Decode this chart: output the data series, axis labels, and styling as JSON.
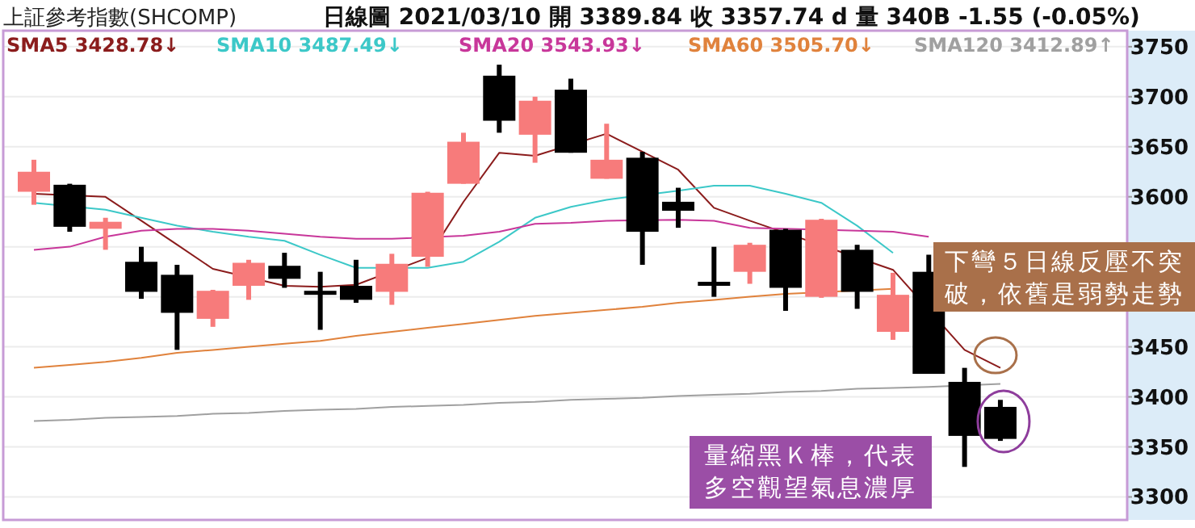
{
  "chart_data": {
    "type": "candlestick",
    "title": "上証參考指數(SHCOMP)",
    "subtitle": "日線圖  2021/03/10  開 3389.84  收 3357.74 d  量 340B  -1.55 (-0.05%)",
    "categories": [
      null,
      null,
      null,
      null,
      null,
      null,
      null,
      null,
      null,
      null,
      null,
      null,
      null,
      null,
      null,
      null,
      null,
      null,
      null,
      null,
      null,
      null,
      null,
      null,
      null,
      null,
      null,
      null
    ],
    "ohlc": [
      [
        3605,
        3637,
        3592,
        3625
      ],
      [
        3612,
        3613,
        3565,
        3570
      ],
      [
        3568,
        3579,
        3547,
        3575
      ],
      [
        3535,
        3550,
        3498,
        3505
      ],
      [
        3522,
        3532,
        3447,
        3484
      ],
      [
        3478,
        3507,
        3470,
        3506
      ],
      [
        3511,
        3537,
        3497,
        3534
      ],
      [
        3531,
        3544,
        3509,
        3518
      ],
      [
        3506,
        3525,
        3467,
        3502
      ],
      [
        3511,
        3537,
        3494,
        3497
      ],
      [
        3505,
        3543,
        3492,
        3533
      ],
      [
        3540,
        3605,
        3530,
        3604
      ],
      [
        3613,
        3664,
        3613,
        3655
      ],
      [
        3721,
        3732,
        3664,
        3676
      ],
      [
        3662,
        3700,
        3634,
        3696
      ],
      [
        3707,
        3718,
        3644,
        3644
      ],
      [
        3618,
        3673,
        3618,
        3637
      ],
      [
        3639,
        3645,
        3532,
        3565
      ],
      [
        3595,
        3609,
        3569,
        3586
      ],
      [
        3515,
        3550,
        3500,
        3511
      ],
      [
        3525,
        3554,
        3513,
        3552
      ],
      [
        3567,
        3568,
        3486,
        3509
      ],
      [
        3500,
        3578,
        3499,
        3577
      ],
      [
        3547,
        3552,
        3488,
        3505
      ],
      [
        3465,
        3524,
        3457,
        3502
      ],
      [
        3525,
        3542,
        3423,
        3423
      ],
      [
        3415,
        3429,
        3330,
        3361
      ],
      [
        3390,
        3397,
        3356,
        3358
      ]
    ],
    "colors": [
      "#f77b7b",
      "#000000",
      "#f77b7b",
      "#000000",
      "#000000",
      "#f77b7b",
      "#f77b7b",
      "#000000",
      "#000000",
      "#000000",
      "#f77b7b",
      "#f77b7b",
      "#f77b7b",
      "#000000",
      "#f77b7b",
      "#000000",
      "#f77b7b",
      "#000000",
      "#000000",
      "#000000",
      "#f77b7b",
      "#000000",
      "#f77b7b",
      "#000000",
      "#f77b7b",
      "#000000",
      "#000000",
      "#000000"
    ],
    "series": [
      {
        "type": "line",
        "name": "SMA5 3428.78↓",
        "color": "#8b1c1c",
        "values": [
          3603,
          null,
          3600,
          3576,
          3552,
          3528,
          null,
          3511,
          3510,
          3512,
          null,
          3539,
          3595,
          3644,
          3641,
          null,
          3663,
          null,
          3627,
          3589,
          3576,
          null,
          null,
          null,
          3527,
          null,
          3447,
          3429
        ]
      },
      {
        "type": "line",
        "name": "SMA10 3487.49↓",
        "color": "#3cc8c8",
        "values": [
          3594,
          null,
          3587,
          3579,
          3571,
          3565,
          3560,
          3556,
          3542,
          3529,
          null,
          3529,
          3535,
          3555,
          3579,
          3590,
          3597,
          null,
          3606,
          3611,
          3611,
          3603,
          3594,
          3571,
          3544,
          null,
          null,
          null
        ]
      },
      {
        "type": "line",
        "name": "SMA20 3543.93↓",
        "color": "#c8379a",
        "values": [
          3547,
          3550,
          3560,
          3566,
          3568,
          3568,
          3566,
          3563,
          3560,
          3558,
          3558,
          null,
          3561,
          3565,
          3573,
          3574,
          3576,
          null,
          3577,
          3576,
          3569,
          null,
          null,
          3566,
          3565,
          3560,
          null,
          null
        ]
      },
      {
        "type": "line",
        "name": "SMA60 3505.70↓",
        "color": "#e0823c",
        "values": [
          3429,
          3432,
          3435,
          3439,
          3444,
          3447,
          3450,
          3453,
          3456,
          3461,
          3465,
          3469,
          3473,
          3477,
          3481,
          3484,
          3487,
          3490,
          3494,
          3497,
          3500,
          3503,
          null,
          null,
          3508,
          null,
          null,
          null
        ]
      },
      {
        "type": "line",
        "name": "SMA120 3412.89↑",
        "color": "#a0a0a0",
        "values": [
          3376,
          3377,
          3379,
          3380,
          3381,
          3383,
          3384,
          3386,
          3387,
          3388,
          3390,
          3391,
          3392,
          3394,
          3395,
          3397,
          3398,
          3399,
          3401,
          3402,
          3403,
          3405,
          3406,
          3408,
          3409,
          3410,
          null,
          3413
        ]
      }
    ],
    "ylim": [
      3277,
      3766
    ],
    "yticks": [
      3300,
      3350,
      3400,
      3450,
      {
        "value": 3500,
        "label": null
      },
      {
        "value": 3550,
        "label": null
      },
      3600,
      3650,
      3700,
      3750
    ],
    "grid": "y",
    "legend": "top",
    "annotations": [
      "下彎５日線反壓不突破，依舊是弱勢走勢",
      "量縮黑Ｋ棒，代表多空觀望氣息濃厚"
    ]
  }
}
